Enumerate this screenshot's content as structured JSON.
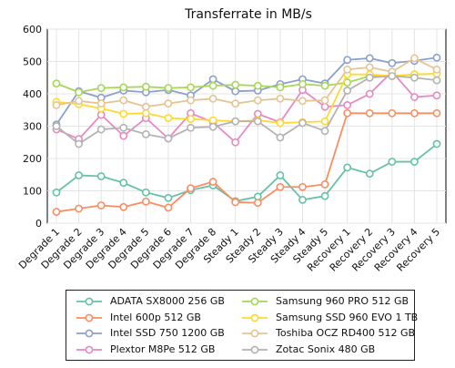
{
  "chart_data": {
    "type": "line",
    "title": "Transferrate in MB/s",
    "xlabel": "",
    "ylabel": "",
    "ylim": [
      0,
      600
    ],
    "yticks": [
      0,
      100,
      200,
      300,
      400,
      500,
      600
    ],
    "grid": true,
    "legend_position": "bottom",
    "categories": [
      "Degrade 1",
      "Degrade 2",
      "Degrade 3",
      "Degrade 4",
      "Degrade 5",
      "Degrade 6",
      "Degrade 7",
      "Degrade 8",
      "Steady 1",
      "Steady 2",
      "Steady 3",
      "Steady 4",
      "Steady 5",
      "Recovery 1",
      "Recovery 2",
      "Recovery 3",
      "Recovery 4",
      "Recovery 5"
    ],
    "series": [
      {
        "name": "ADATA SX8000 256 GB",
        "color": "#66c2a5",
        "values": [
          95,
          148,
          145,
          125,
          95,
          78,
          102,
          117,
          68,
          82,
          148,
          72,
          84,
          172,
          153,
          190,
          190,
          245
        ]
      },
      {
        "name": "Intel 600p 512 GB",
        "color": "#fc8d62",
        "values": [
          35,
          45,
          55,
          50,
          67,
          48,
          108,
          128,
          65,
          63,
          112,
          112,
          120,
          340,
          340,
          340,
          340,
          340
        ]
      },
      {
        "name": "Intel SSD 750 1200 GB",
        "color": "#8da0cb",
        "values": [
          305,
          408,
          388,
          410,
          405,
          412,
          395,
          445,
          408,
          410,
          430,
          445,
          432,
          505,
          510,
          495,
          502,
          512
        ]
      },
      {
        "name": "Plextor M8Pe 512 GB",
        "color": "#e78ac3",
        "values": [
          290,
          260,
          335,
          270,
          325,
          262,
          340,
          312,
          250,
          338,
          312,
          412,
          360,
          365,
          400,
          468,
          390,
          395
        ]
      },
      {
        "name": "Samsung 960 PRO 512 GB",
        "color": "#a6d854",
        "values": [
          432,
          405,
          418,
          420,
          422,
          418,
          420,
          425,
          428,
          425,
          420,
          430,
          425,
          435,
          455,
          455,
          460,
          462
        ]
      },
      {
        "name": "Samsung SSD 960 EVO 1 TB",
        "color": "#ffd92f",
        "values": [
          375,
          368,
          355,
          338,
          340,
          325,
          322,
          318,
          315,
          318,
          310,
          312,
          315,
          460,
          460,
          455,
          460,
          462
        ]
      },
      {
        "name": "Toshiba OCZ RD400 512 GB",
        "color": "#e5c494",
        "values": [
          365,
          378,
          370,
          380,
          360,
          370,
          380,
          385,
          370,
          380,
          385,
          378,
          380,
          475,
          482,
          468,
          510,
          475
        ]
      },
      {
        "name": "Zotac Sonix 480 GB",
        "color": "#b3b3b3",
        "values": [
          300,
          245,
          290,
          295,
          275,
          262,
          295,
          298,
          315,
          315,
          265,
          310,
          285,
          410,
          450,
          455,
          450,
          442
        ]
      }
    ]
  }
}
